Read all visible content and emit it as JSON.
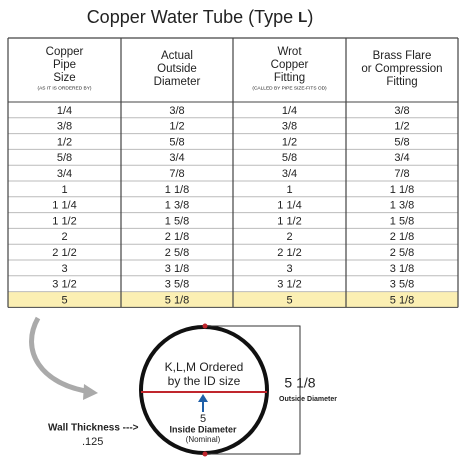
{
  "title": {
    "text": "Copper Water Tube (Type",
    "type": "L",
    "close": ")"
  },
  "table": {
    "headers": [
      {
        "lines": [
          "Copper",
          "Pipe",
          "Size"
        ],
        "note": "(AS IT IS ORDERED BY)"
      },
      {
        "lines": [
          "Actual",
          "Outside",
          "Diameter"
        ]
      },
      {
        "lines": [
          "Wrot",
          "Copper",
          "Fitting"
        ],
        "note": "(CALLED BY PIPE SIZE-FITS OD)"
      },
      {
        "lines": [
          "Brass Flare",
          "or Compression",
          "Fitting"
        ]
      }
    ],
    "rows": [
      [
        "1/4",
        "3/8",
        "1/4",
        "3/8"
      ],
      [
        "3/8",
        "1/2",
        "3/8",
        "1/2"
      ],
      [
        "1/2",
        "5/8",
        "1/2",
        "5/8"
      ],
      [
        "5/8",
        "3/4",
        "5/8",
        "3/4"
      ],
      [
        "3/4",
        "7/8",
        "3/4",
        "7/8"
      ],
      [
        "1",
        "1 1/8",
        "1",
        "1 1/8"
      ],
      [
        "1 1/4",
        "1 3/8",
        "1 1/4",
        "1 3/8"
      ],
      [
        "1 1/2",
        "1 5/8",
        "1 1/2",
        "1 5/8"
      ],
      [
        "2",
        "2 1/8",
        "2",
        "2 1/8"
      ],
      [
        "2 1/2",
        "2 5/8",
        "2 1/2",
        "2 5/8"
      ],
      [
        "3",
        "3 1/8",
        "3",
        "3 1/8"
      ],
      [
        "3 1/2",
        "3 5/8",
        "3 1/2",
        "3 5/8"
      ],
      [
        "5",
        "5 1/8",
        "5",
        "5 1/8"
      ]
    ],
    "highlight_row": 12
  },
  "diagram": {
    "circle_label": [
      "K,L,M Ordered",
      "by the ID size"
    ],
    "inside_value": "5",
    "inside_label": "Inside Diameter",
    "inside_note": "(Nominal)",
    "outside_value": "5 1/8",
    "outside_label": "Outside Diameter",
    "wall_label": "Wall Thickness --->",
    "wall_value": ".125"
  }
}
